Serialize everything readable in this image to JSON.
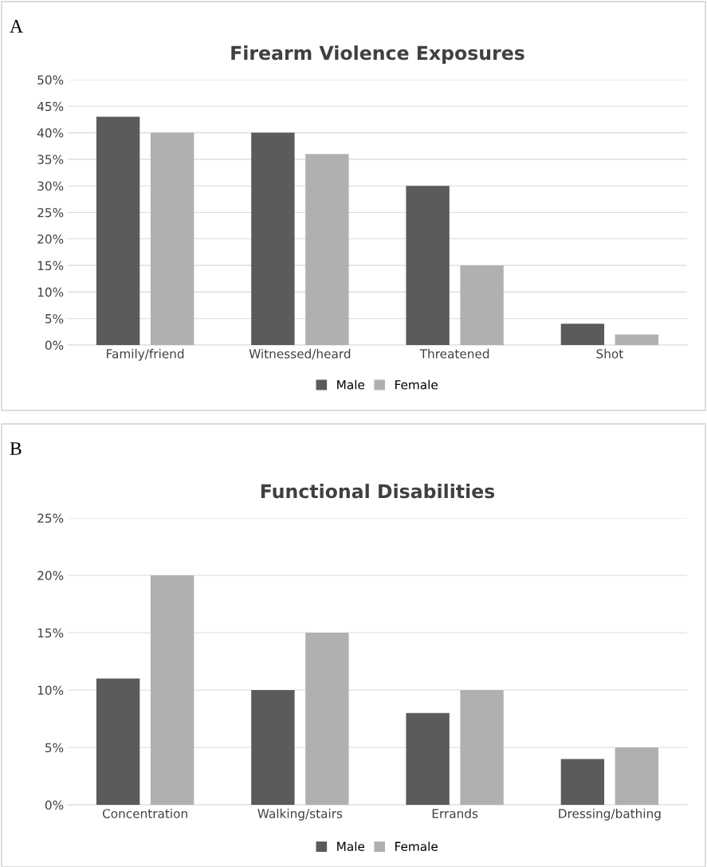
{
  "chart_data": [
    {
      "type": "bar",
      "title": "Firearm Violence Exposures",
      "annotations": [
        "A"
      ],
      "categories": [
        "Family/friend",
        "Witnessed/heard",
        "Threatened",
        "Shot"
      ],
      "series": [
        {
          "name": "Male",
          "color": "#5b5b5b",
          "values": [
            43,
            40,
            30,
            4
          ]
        },
        {
          "name": "Female",
          "color": "#b0b0b0",
          "values": [
            40,
            36,
            15,
            2
          ]
        }
      ],
      "ylim": [
        0,
        50
      ],
      "yticks": [
        {
          "value": 0,
          "label": "0%"
        },
        {
          "value": 5,
          "label": "5%"
        },
        {
          "value": 10,
          "label": "10%"
        },
        {
          "value": 15,
          "label": "15%"
        },
        {
          "value": 20,
          "label": "20%"
        },
        {
          "value": 25,
          "label": "25%"
        },
        {
          "value": 30,
          "label": "30%"
        },
        {
          "value": 35,
          "label": "35%"
        },
        {
          "value": 40,
          "label": "40%"
        },
        {
          "value": 45,
          "label": "45%"
        },
        {
          "value": 50,
          "label": "50%"
        }
      ],
      "grid": "y",
      "legend": "bottom"
    },
    {
      "type": "bar",
      "title": "Functional Disabilities",
      "annotations": [
        "B"
      ],
      "categories": [
        "Concentration",
        "Walking/stairs",
        "Errands",
        "Dressing/bathing"
      ],
      "series": [
        {
          "name": "Male",
          "color": "#5b5b5b",
          "values": [
            11,
            10,
            8,
            4
          ]
        },
        {
          "name": "Female",
          "color": "#b0b0b0",
          "values": [
            20,
            15,
            10,
            5
          ]
        }
      ],
      "ylim": [
        0,
        25
      ],
      "yticks": [
        {
          "value": 0,
          "label": "0%"
        },
        {
          "value": 5,
          "label": "5%"
        },
        {
          "value": 10,
          "label": "10%"
        },
        {
          "value": 15,
          "label": "15%"
        },
        {
          "value": 20,
          "label": "20%"
        },
        {
          "value": 25,
          "label": "25%"
        }
      ],
      "grid": "y",
      "legend": "bottom"
    }
  ]
}
